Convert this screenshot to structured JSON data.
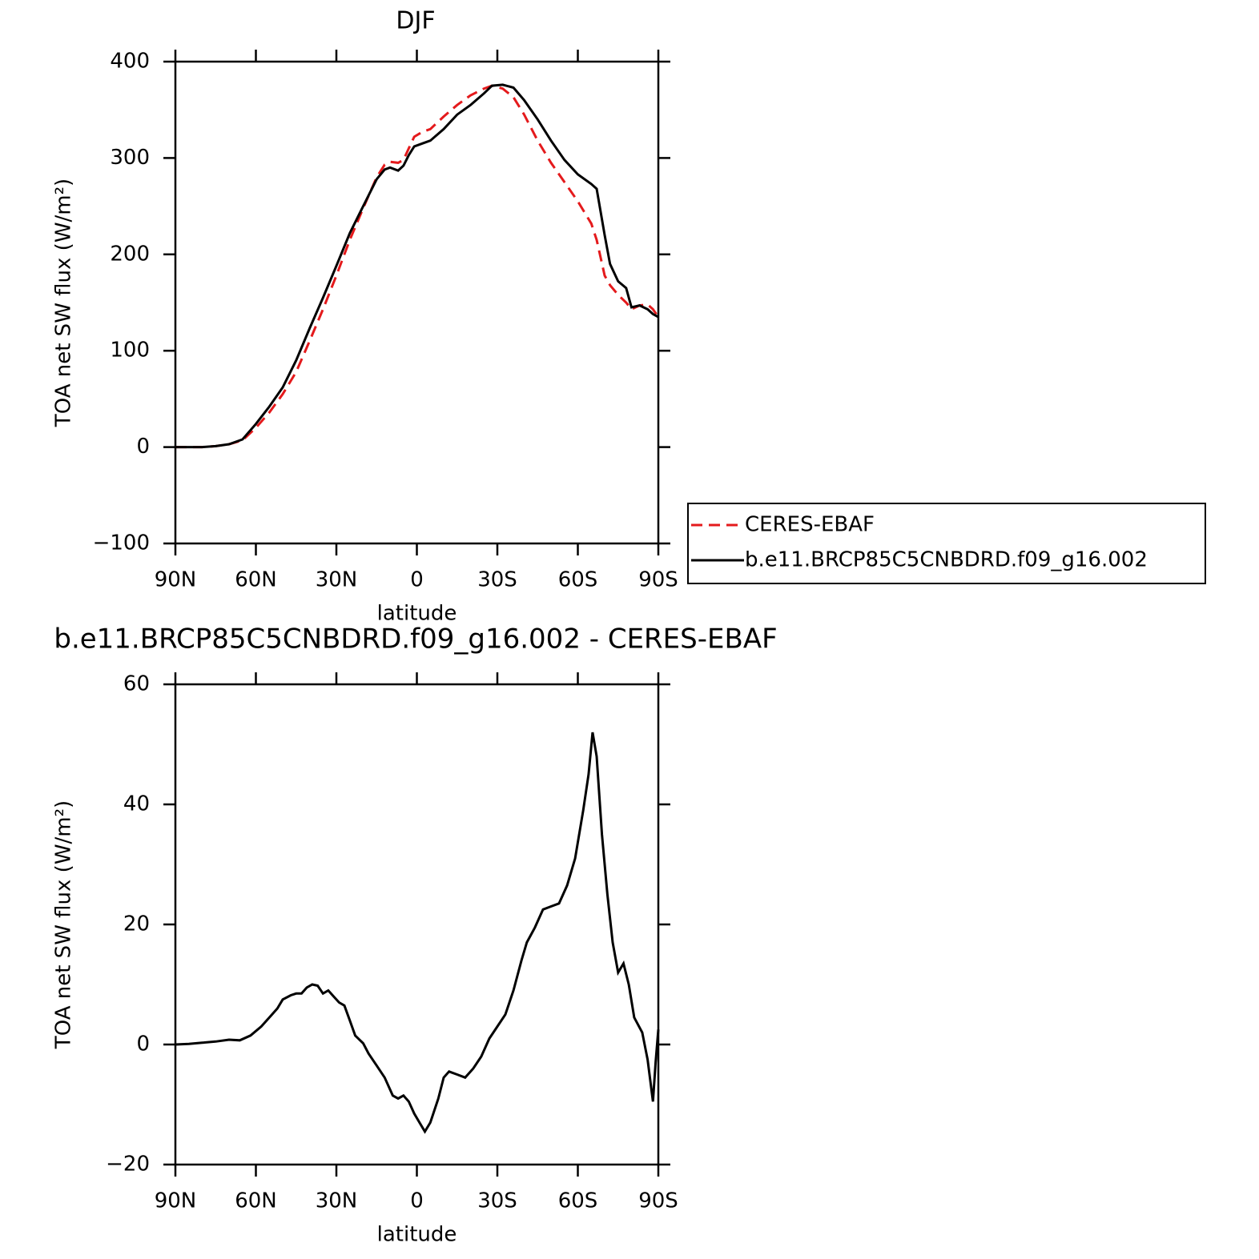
{
  "chart_data": [
    {
      "type": "line",
      "title": "DJF",
      "xlabel": "latitude",
      "ylabel": "TOA net SW flux (W/m²)",
      "xlim": [
        90,
        -90
      ],
      "ylim": [
        -100,
        400
      ],
      "xticks": [
        {
          "value": 90,
          "label": "90N"
        },
        {
          "value": 60,
          "label": "60N"
        },
        {
          "value": 30,
          "label": "30N"
        },
        0,
        {
          "value": -30,
          "label": "30S"
        },
        {
          "value": -60,
          "label": "60S"
        },
        {
          "value": -90,
          "label": "90S"
        }
      ],
      "yticks": [
        {
          "value": -100,
          "label": "−100"
        },
        0,
        100,
        200,
        300,
        400
      ],
      "legend": "right",
      "x": [
        90,
        80,
        75,
        70,
        65,
        60,
        55,
        50,
        45,
        40,
        35,
        30,
        25,
        20,
        15,
        12,
        10,
        7,
        5,
        3,
        1,
        -2,
        -5,
        -10,
        -15,
        -20,
        -25,
        -28,
        -32,
        -36,
        -40,
        -45,
        -50,
        -55,
        -60,
        -65,
        -67,
        -70,
        -72,
        -75,
        -78,
        -80,
        -83,
        -86,
        -88,
        -90
      ],
      "series": [
        {
          "name": "CERES-EBAF",
          "color": "#e41a1c",
          "linestyle": "dashed",
          "values": [
            0,
            0,
            1,
            3,
            7,
            20,
            36,
            55,
            78,
            110,
            143,
            178,
            215,
            248,
            280,
            293,
            296,
            295,
            298,
            310,
            322,
            327,
            330,
            343,
            355,
            365,
            372,
            375,
            372,
            363,
            345,
            318,
            295,
            275,
            255,
            232,
            215,
            178,
            168,
            158,
            150,
            143,
            147,
            148,
            143,
            135
          ]
        },
        {
          "name": "b.e11.BRCP85C5CNBDRD.f09_g16.002",
          "color": "#000000",
          "linestyle": "solid",
          "values": [
            0,
            0,
            1,
            3,
            8,
            24,
            42,
            62,
            90,
            123,
            155,
            188,
            222,
            250,
            278,
            288,
            290,
            287,
            292,
            303,
            312,
            315,
            318,
            330,
            345,
            355,
            367,
            375,
            376,
            373,
            360,
            340,
            318,
            298,
            283,
            273,
            268,
            220,
            190,
            172,
            165,
            145,
            147,
            143,
            138,
            135
          ]
        }
      ]
    },
    {
      "type": "line",
      "title": "b.e11.BRCP85C5CNBDRD.f09_g16.002 - CERES-EBAF",
      "xlabel": "latitude",
      "ylabel": "TOA net SW flux (W/m²)",
      "xlim": [
        90,
        -90
      ],
      "ylim": [
        -20,
        60
      ],
      "xticks": [
        {
          "value": 90,
          "label": "90N"
        },
        {
          "value": 60,
          "label": "60N"
        },
        {
          "value": 30,
          "label": "30N"
        },
        0,
        {
          "value": -30,
          "label": "30S"
        },
        {
          "value": -60,
          "label": "60S"
        },
        {
          "value": -90,
          "label": "90S"
        }
      ],
      "yticks": [
        {
          "value": -20,
          "label": "−20"
        },
        0,
        20,
        40,
        60
      ],
      "color": "#000000",
      "x": [
        90,
        85,
        80,
        75,
        70,
        66,
        62,
        58,
        55,
        52,
        50,
        47,
        45,
        43,
        41,
        39,
        37,
        35,
        33,
        31,
        29,
        27,
        25,
        23,
        20,
        18,
        15,
        12,
        9,
        7,
        5,
        3,
        1,
        -1,
        -3,
        -5,
        -8,
        -10,
        -12,
        -15,
        -18,
        -21,
        -24,
        -27,
        -30,
        -33,
        -36,
        -39,
        -41,
        -44,
        -47,
        -50,
        -53,
        -56,
        -59,
        -62,
        -64,
        -65.5,
        -67,
        -69,
        -71,
        -73,
        -75,
        -77,
        -79,
        -81,
        -84,
        -86,
        -88,
        -89,
        -90
      ],
      "values": [
        0,
        0.1,
        0.3,
        0.5,
        0.8,
        0.7,
        1.5,
        3,
        4.5,
        6,
        7.5,
        8.2,
        8.5,
        8.5,
        9.5,
        10,
        9.8,
        8.5,
        9,
        8,
        7,
        6.5,
        4,
        1.5,
        0.2,
        -1.5,
        -3.5,
        -5.5,
        -8.5,
        -9,
        -8.5,
        -9.5,
        -11.5,
        -13,
        -14.5,
        -13,
        -9,
        -5.5,
        -4.5,
        -5,
        -5.5,
        -4,
        -2,
        1,
        3,
        5,
        9,
        14,
        17,
        19.5,
        22.5,
        23,
        23.5,
        26.5,
        31,
        39,
        45,
        52,
        48,
        35,
        25,
        17,
        12,
        13.5,
        10,
        4.5,
        2,
        -2.5,
        -9.5,
        -3,
        2.5
      ]
    }
  ]
}
